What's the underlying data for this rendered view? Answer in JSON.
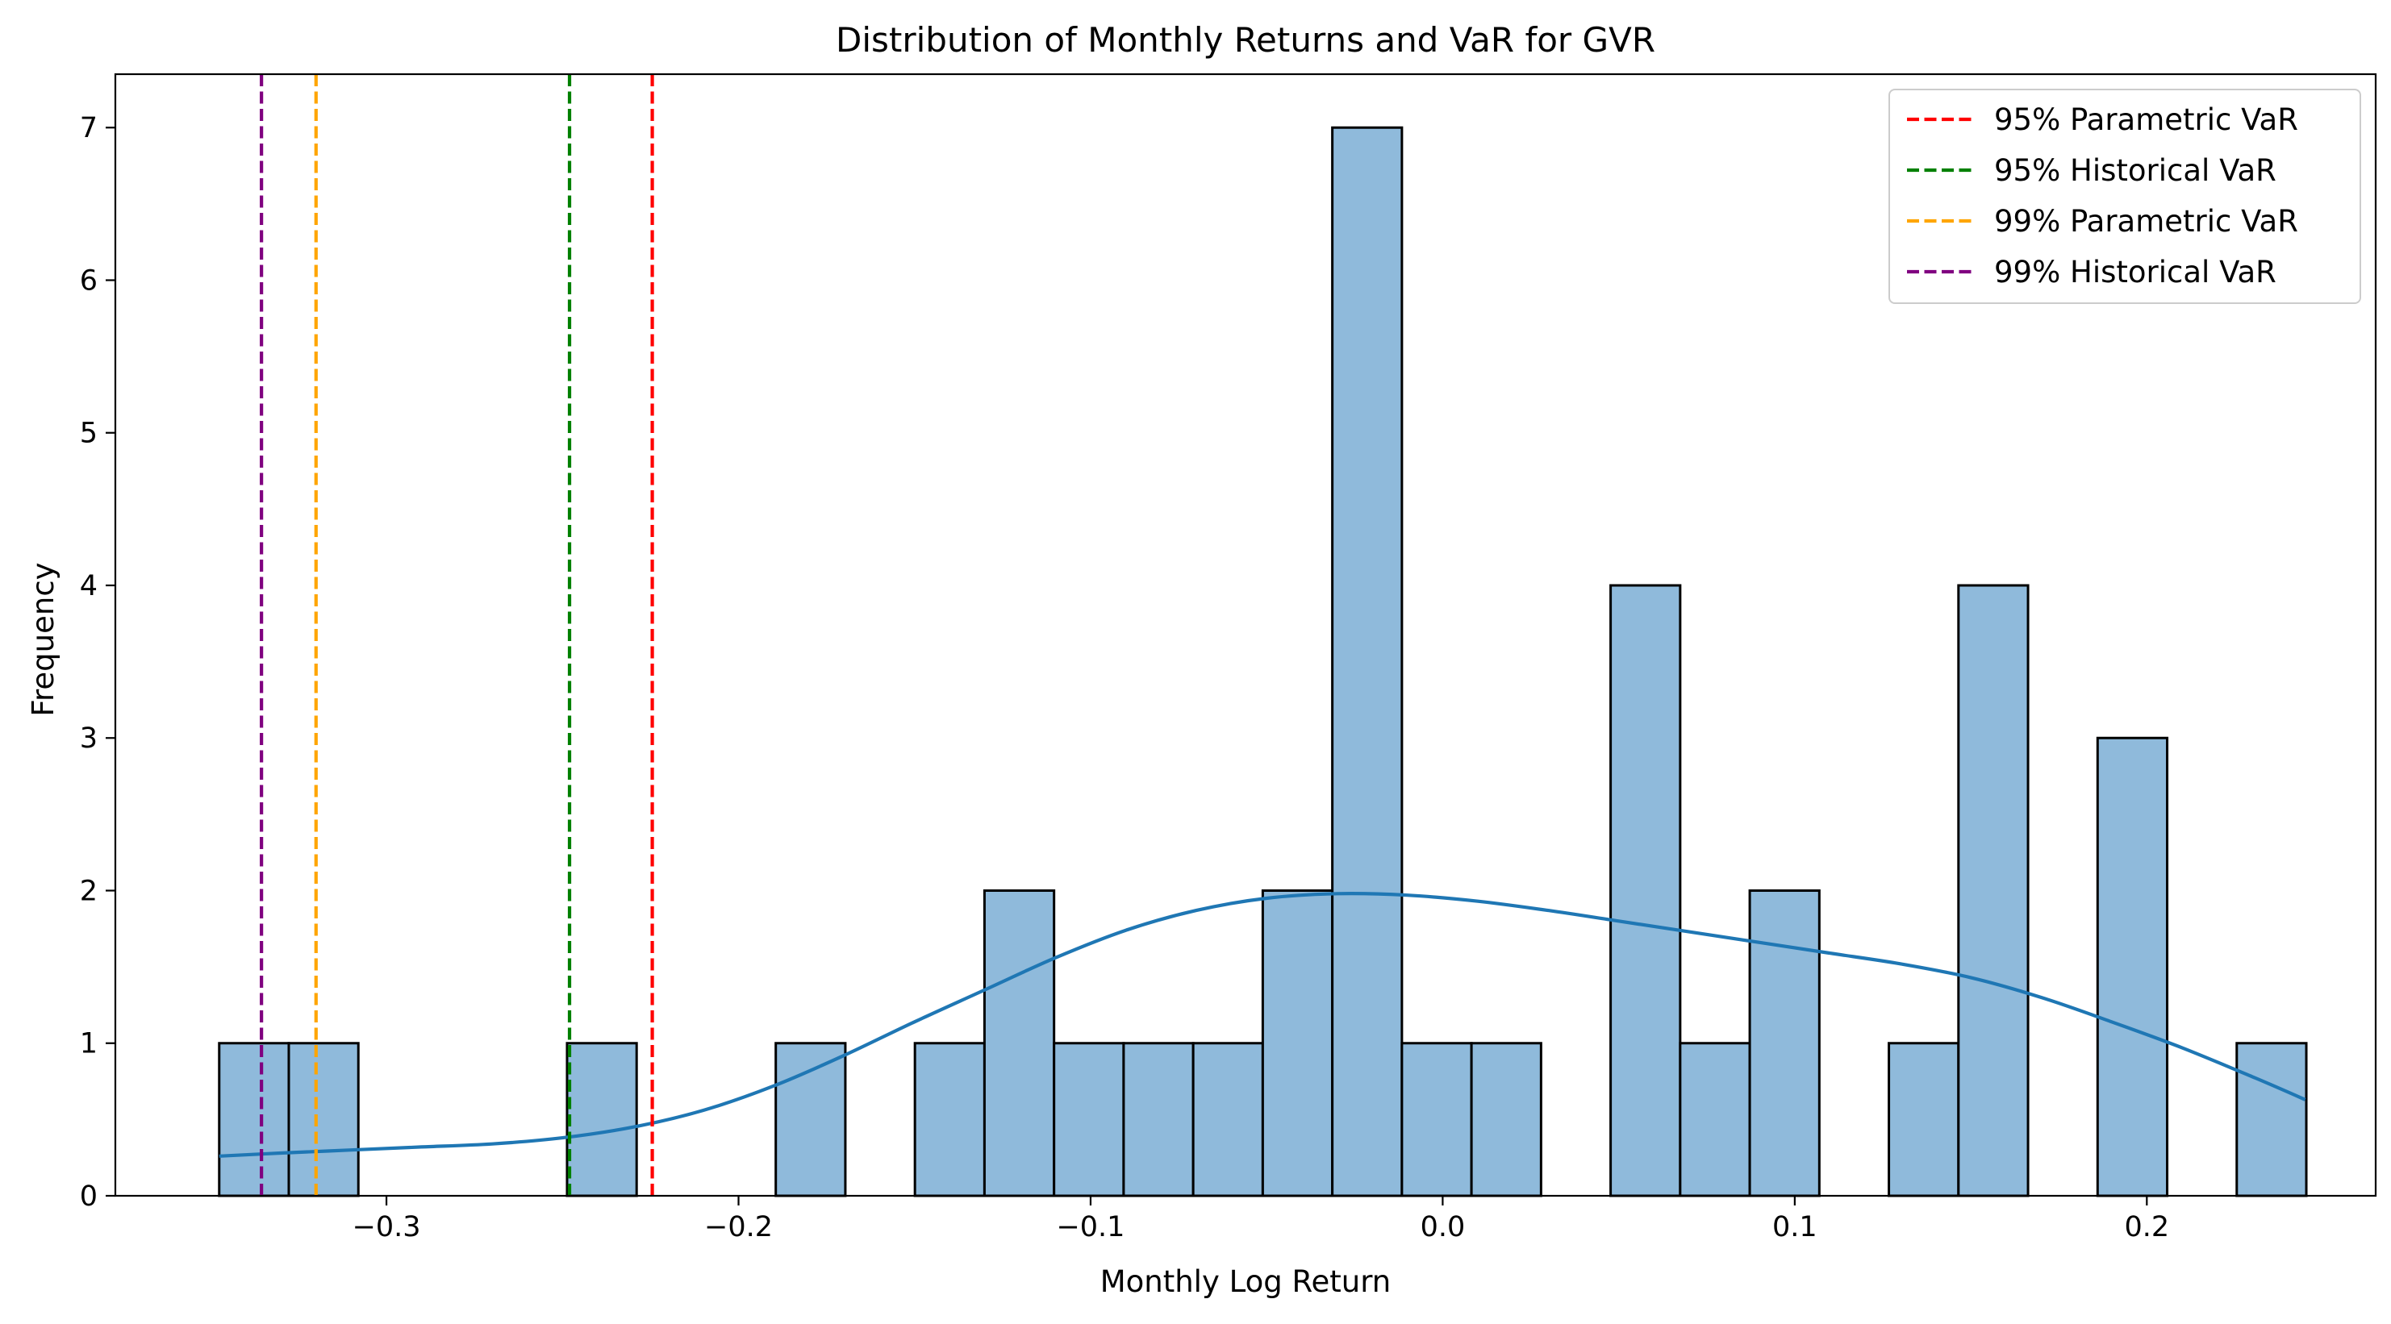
{
  "chart_data": {
    "type": "bar",
    "title": "Distribution of Monthly Returns and VaR for GVR",
    "xlabel": "Monthly Log Return",
    "ylabel": "Frequency",
    "xlim": [
      -0.377,
      0.265
    ],
    "ylim": [
      0,
      7.35
    ],
    "grid": false,
    "legend_position": "top-right",
    "x_ticks": [
      {
        "value": -0.3,
        "label": "−0.3"
      },
      {
        "value": -0.2,
        "label": "−0.2"
      },
      {
        "value": -0.1,
        "label": "−0.1"
      },
      {
        "value": 0.0,
        "label": "0.0"
      },
      {
        "value": 0.1,
        "label": "0.1"
      },
      {
        "value": 0.2,
        "label": "0.2"
      }
    ],
    "y_ticks": [
      {
        "value": 0,
        "label": "0"
      },
      {
        "value": 1,
        "label": "1"
      },
      {
        "value": 2,
        "label": "2"
      },
      {
        "value": 3,
        "label": "3"
      },
      {
        "value": 4,
        "label": "4"
      },
      {
        "value": 5,
        "label": "5"
      },
      {
        "value": 6,
        "label": "6"
      },
      {
        "value": 7,
        "label": "7"
      }
    ],
    "histogram": {
      "bin_start": -0.3475,
      "bin_width": 0.01976,
      "counts": [
        1,
        1,
        0,
        0,
        0,
        1,
        0,
        0,
        1,
        0,
        1,
        2,
        1,
        1,
        1,
        2,
        7,
        1,
        1,
        0,
        4,
        1,
        2,
        0,
        1,
        4,
        0,
        3,
        0,
        1
      ],
      "fill_color": "#8fbadb",
      "edge_color": "#000000"
    },
    "kde": {
      "color": "#1f77b4",
      "x": [
        -0.3475,
        -0.33,
        -0.31,
        -0.29,
        -0.27,
        -0.25,
        -0.23,
        -0.21,
        -0.19,
        -0.17,
        -0.15,
        -0.13,
        -0.11,
        -0.09,
        -0.07,
        -0.05,
        -0.03,
        -0.01,
        0.01,
        0.03,
        0.05,
        0.07,
        0.09,
        0.11,
        0.13,
        0.15,
        0.17,
        0.19,
        0.21,
        0.23,
        0.245
      ],
      "y": [
        0.26,
        0.28,
        0.3,
        0.32,
        0.34,
        0.38,
        0.45,
        0.56,
        0.72,
        0.92,
        1.14,
        1.35,
        1.56,
        1.74,
        1.87,
        1.95,
        1.98,
        1.97,
        1.93,
        1.87,
        1.8,
        1.73,
        1.66,
        1.59,
        1.52,
        1.43,
        1.3,
        1.14,
        0.97,
        0.78,
        0.63
      ]
    },
    "vlines": [
      {
        "name": "95% Parametric VaR",
        "x": -0.2245,
        "color": "#ff0000"
      },
      {
        "name": "95% Historical VaR",
        "x": -0.248,
        "color": "#008000"
      },
      {
        "name": "99% Parametric VaR",
        "x": -0.32,
        "color": "#ffa500"
      },
      {
        "name": "99% Historical VaR",
        "x": -0.3355,
        "color": "#800080"
      }
    ]
  }
}
